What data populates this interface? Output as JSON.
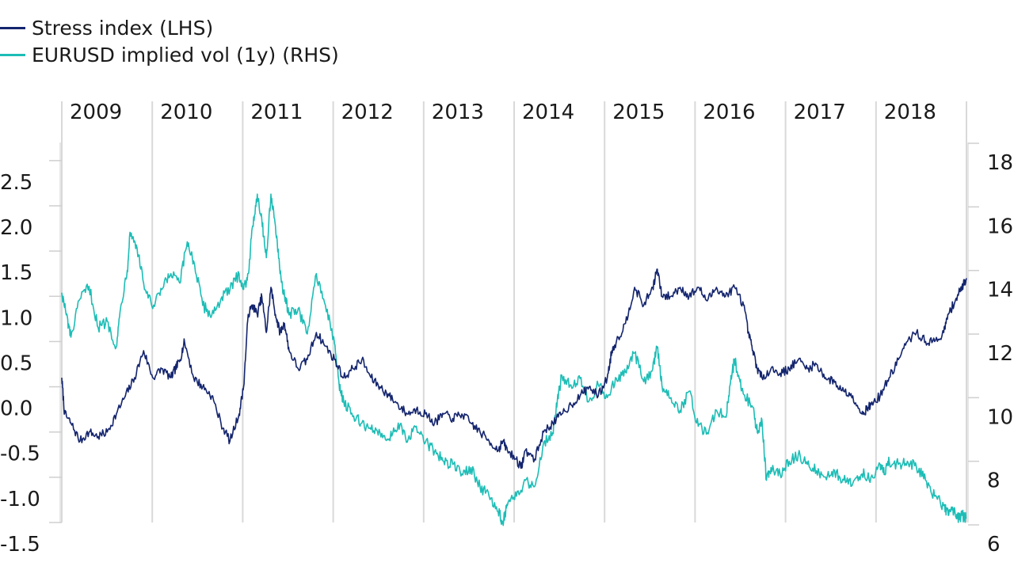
{
  "chart_data": {
    "type": "line",
    "title": "",
    "legend_position": "top-left",
    "x_years": [
      "2009",
      "2010",
      "2011",
      "2012",
      "2013",
      "2014",
      "2015",
      "2016",
      "2017",
      "2018"
    ],
    "x_range": [
      2009.0,
      2018.95
    ],
    "y_left": {
      "range": [
        -1.5,
        2.7
      ],
      "ticks": [
        "2.5",
        "2.0",
        "1.5",
        "1.0",
        "0.5",
        "0.0",
        "-0.5",
        "-1.0",
        "-1.5"
      ]
    },
    "y_right": {
      "range": [
        6,
        18
      ],
      "ticks": [
        "18",
        "16",
        "14",
        "12",
        "10",
        "8",
        "6"
      ]
    },
    "grid": "vertical lines at year boundaries",
    "series": [
      {
        "name": "Stress index (LHS)",
        "axis": "left",
        "color": "#14256e",
        "points": [
          [
            2009.0,
            0.1
          ],
          [
            2009.03,
            -0.3
          ],
          [
            2009.1,
            -0.4
          ],
          [
            2009.2,
            -0.6
          ],
          [
            2009.3,
            -0.5
          ],
          [
            2009.4,
            -0.55
          ],
          [
            2009.5,
            -0.5
          ],
          [
            2009.6,
            -0.3
          ],
          [
            2009.7,
            -0.1
          ],
          [
            2009.8,
            0.1
          ],
          [
            2009.9,
            0.4
          ],
          [
            2010.0,
            0.1
          ],
          [
            2010.1,
            0.2
          ],
          [
            2010.2,
            0.1
          ],
          [
            2010.25,
            0.2
          ],
          [
            2010.3,
            0.3
          ],
          [
            2010.35,
            0.5
          ],
          [
            2010.45,
            0.1
          ],
          [
            2010.55,
            0.0
          ],
          [
            2010.65,
            -0.1
          ],
          [
            2010.75,
            -0.4
          ],
          [
            2010.85,
            -0.6
          ],
          [
            2010.95,
            -0.3
          ],
          [
            2011.0,
            0.0
          ],
          [
            2011.05,
            0.8
          ],
          [
            2011.1,
            0.9
          ],
          [
            2011.15,
            0.8
          ],
          [
            2011.2,
            1.0
          ],
          [
            2011.25,
            0.6
          ],
          [
            2011.3,
            1.1
          ],
          [
            2011.35,
            0.8
          ],
          [
            2011.4,
            0.6
          ],
          [
            2011.45,
            0.7
          ],
          [
            2011.5,
            0.4
          ],
          [
            2011.6,
            0.2
          ],
          [
            2011.7,
            0.3
          ],
          [
            2011.8,
            0.6
          ],
          [
            2011.9,
            0.45
          ],
          [
            2012.0,
            0.3
          ],
          [
            2012.1,
            0.1
          ],
          [
            2012.2,
            0.2
          ],
          [
            2012.3,
            0.3
          ],
          [
            2012.4,
            0.1
          ],
          [
            2012.5,
            0.0
          ],
          [
            2012.6,
            -0.1
          ],
          [
            2012.7,
            -0.2
          ],
          [
            2012.8,
            -0.3
          ],
          [
            2012.9,
            -0.25
          ],
          [
            2013.0,
            -0.3
          ],
          [
            2013.1,
            -0.4
          ],
          [
            2013.2,
            -0.3
          ],
          [
            2013.3,
            -0.35
          ],
          [
            2013.4,
            -0.3
          ],
          [
            2013.5,
            -0.4
          ],
          [
            2013.6,
            -0.5
          ],
          [
            2013.7,
            -0.6
          ],
          [
            2013.8,
            -0.7
          ],
          [
            2013.85,
            -0.6
          ],
          [
            2013.9,
            -0.7
          ],
          [
            2014.0,
            -0.8
          ],
          [
            2014.05,
            -0.9
          ],
          [
            2014.1,
            -0.7
          ],
          [
            2014.2,
            -0.8
          ],
          [
            2014.3,
            -0.5
          ],
          [
            2014.4,
            -0.4
          ],
          [
            2014.5,
            -0.3
          ],
          [
            2014.6,
            -0.2
          ],
          [
            2014.7,
            -0.1
          ],
          [
            2014.8,
            0.0
          ],
          [
            2014.9,
            -0.1
          ],
          [
            2015.0,
            0.1
          ],
          [
            2015.05,
            0.4
          ],
          [
            2015.1,
            0.5
          ],
          [
            2015.2,
            0.7
          ],
          [
            2015.3,
            1.1
          ],
          [
            2015.4,
            0.9
          ],
          [
            2015.5,
            1.1
          ],
          [
            2015.55,
            1.3
          ],
          [
            2015.6,
            1.0
          ],
          [
            2015.7,
            1.0
          ],
          [
            2015.8,
            1.1
          ],
          [
            2015.9,
            1.0
          ],
          [
            2016.0,
            1.1
          ],
          [
            2016.1,
            0.95
          ],
          [
            2016.2,
            1.1
          ],
          [
            2016.3,
            1.0
          ],
          [
            2016.4,
            1.1
          ],
          [
            2016.5,
            0.9
          ],
          [
            2016.55,
            0.6
          ],
          [
            2016.6,
            0.4
          ],
          [
            2016.65,
            0.2
          ],
          [
            2016.7,
            0.1
          ],
          [
            2016.8,
            0.2
          ],
          [
            2016.9,
            0.15
          ],
          [
            2017.0,
            0.2
          ],
          [
            2017.1,
            0.3
          ],
          [
            2017.2,
            0.2
          ],
          [
            2017.3,
            0.25
          ],
          [
            2017.4,
            0.1
          ],
          [
            2017.5,
            0.05
          ],
          [
            2017.6,
            -0.05
          ],
          [
            2017.7,
            -0.1
          ],
          [
            2017.8,
            -0.3
          ],
          [
            2017.85,
            -0.25
          ],
          [
            2017.9,
            -0.2
          ],
          [
            2018.0,
            -0.1
          ],
          [
            2018.1,
            0.1
          ],
          [
            2018.2,
            0.3
          ],
          [
            2018.3,
            0.5
          ],
          [
            2018.4,
            0.6
          ],
          [
            2018.5,
            0.5
          ],
          [
            2018.6,
            0.5
          ],
          [
            2018.7,
            0.6
          ],
          [
            2018.75,
            0.8
          ],
          [
            2018.8,
            0.9
          ],
          [
            2018.85,
            1.0
          ],
          [
            2018.9,
            1.1
          ],
          [
            2018.95,
            1.2
          ]
        ]
      },
      {
        "name": "EURUSD implied vol (1y) (RHS)",
        "axis": "right",
        "color": "#1dbdb6",
        "points": [
          [
            2009.0,
            13.9
          ],
          [
            2009.05,
            13.2
          ],
          [
            2009.1,
            12.5
          ],
          [
            2009.2,
            13.7
          ],
          [
            2009.3,
            14.1
          ],
          [
            2009.4,
            12.8
          ],
          [
            2009.5,
            13.0
          ],
          [
            2009.6,
            12.2
          ],
          [
            2009.65,
            13.5
          ],
          [
            2009.72,
            14.6
          ],
          [
            2009.75,
            15.8
          ],
          [
            2009.82,
            15.4
          ],
          [
            2009.9,
            14.2
          ],
          [
            2010.0,
            13.4
          ],
          [
            2010.1,
            14.0
          ],
          [
            2010.2,
            14.5
          ],
          [
            2010.3,
            14.2
          ],
          [
            2010.38,
            15.5
          ],
          [
            2010.45,
            14.9
          ],
          [
            2010.55,
            13.5
          ],
          [
            2010.65,
            13.2
          ],
          [
            2010.75,
            13.7
          ],
          [
            2010.85,
            14.0
          ],
          [
            2010.95,
            14.5
          ],
          [
            2011.0,
            14.0
          ],
          [
            2011.05,
            14.5
          ],
          [
            2011.1,
            16.0
          ],
          [
            2011.15,
            17.0
          ],
          [
            2011.2,
            16.2
          ],
          [
            2011.25,
            15.0
          ],
          [
            2011.3,
            17.0
          ],
          [
            2011.35,
            16.0
          ],
          [
            2011.4,
            14.5
          ],
          [
            2011.45,
            13.8
          ],
          [
            2011.5,
            13.2
          ],
          [
            2011.6,
            13.4
          ],
          [
            2011.7,
            12.6
          ],
          [
            2011.8,
            14.5
          ],
          [
            2011.9,
            13.5
          ],
          [
            2012.0,
            12.3
          ],
          [
            2012.05,
            11.0
          ],
          [
            2012.1,
            10.5
          ],
          [
            2012.2,
            10.0
          ],
          [
            2012.3,
            9.8
          ],
          [
            2012.4,
            9.6
          ],
          [
            2012.5,
            9.5
          ],
          [
            2012.6,
            9.3
          ],
          [
            2012.7,
            9.8
          ],
          [
            2012.8,
            9.2
          ],
          [
            2012.9,
            9.7
          ],
          [
            2013.0,
            9.2
          ],
          [
            2013.1,
            8.9
          ],
          [
            2013.2,
            8.6
          ],
          [
            2013.3,
            8.5
          ],
          [
            2013.4,
            8.2
          ],
          [
            2013.5,
            8.4
          ],
          [
            2013.6,
            7.8
          ],
          [
            2013.7,
            7.5
          ],
          [
            2013.8,
            7.0
          ],
          [
            2013.85,
            6.7
          ],
          [
            2013.9,
            7.2
          ],
          [
            2014.0,
            7.5
          ],
          [
            2014.1,
            8.0
          ],
          [
            2014.2,
            7.8
          ],
          [
            2014.3,
            9.2
          ],
          [
            2014.4,
            9.5
          ],
          [
            2014.45,
            10.5
          ],
          [
            2014.5,
            11.3
          ],
          [
            2014.6,
            11.0
          ],
          [
            2014.7,
            11.2
          ],
          [
            2014.8,
            10.5
          ],
          [
            2014.9,
            11.0
          ],
          [
            2015.0,
            10.6
          ],
          [
            2015.1,
            11.2
          ],
          [
            2015.2,
            11.4
          ],
          [
            2015.3,
            12.0
          ],
          [
            2015.4,
            11.1
          ],
          [
            2015.5,
            11.5
          ],
          [
            2015.55,
            12.2
          ],
          [
            2015.6,
            11.0
          ],
          [
            2015.7,
            10.6
          ],
          [
            2015.8,
            10.2
          ],
          [
            2015.9,
            10.8
          ],
          [
            2016.0,
            9.7
          ],
          [
            2016.1,
            9.5
          ],
          [
            2016.2,
            10.2
          ],
          [
            2016.3,
            10.0
          ],
          [
            2016.35,
            11.0
          ],
          [
            2016.4,
            11.8
          ],
          [
            2016.45,
            11.2
          ],
          [
            2016.5,
            10.7
          ],
          [
            2016.6,
            10.3
          ],
          [
            2016.65,
            9.5
          ],
          [
            2016.7,
            9.9
          ],
          [
            2016.75,
            8.0
          ],
          [
            2016.8,
            8.4
          ],
          [
            2016.9,
            8.2
          ],
          [
            2017.0,
            8.6
          ],
          [
            2017.1,
            8.8
          ],
          [
            2017.2,
            8.5
          ],
          [
            2017.3,
            8.3
          ],
          [
            2017.4,
            8.1
          ],
          [
            2017.5,
            8.3
          ],
          [
            2017.6,
            8.0
          ],
          [
            2017.7,
            7.9
          ],
          [
            2017.8,
            8.2
          ],
          [
            2017.9,
            8.1
          ],
          [
            2018.0,
            8.5
          ],
          [
            2018.05,
            8.2
          ],
          [
            2018.1,
            8.6
          ],
          [
            2018.2,
            8.5
          ],
          [
            2018.3,
            8.6
          ],
          [
            2018.4,
            8.4
          ],
          [
            2018.5,
            8.0
          ],
          [
            2018.6,
            7.5
          ],
          [
            2018.7,
            7.2
          ],
          [
            2018.75,
            6.9
          ],
          [
            2018.8,
            7.1
          ],
          [
            2018.85,
            6.8
          ],
          [
            2018.9,
            6.9
          ],
          [
            2018.95,
            6.8
          ]
        ]
      }
    ]
  }
}
